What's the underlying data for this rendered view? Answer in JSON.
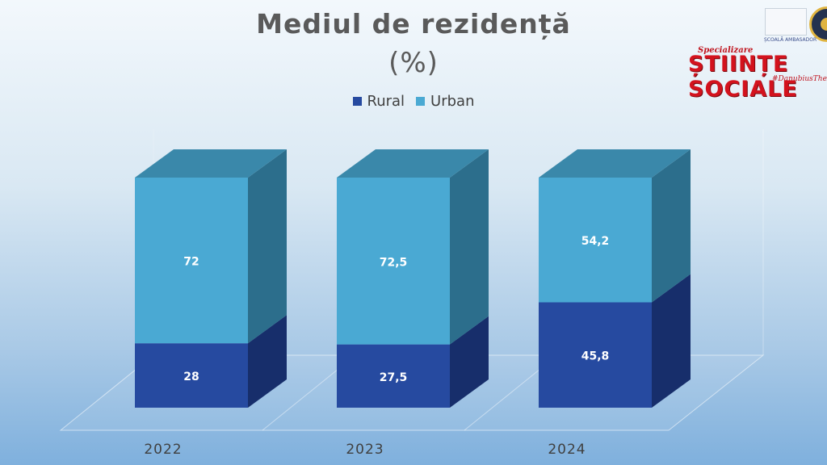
{
  "title": {
    "line1": "Mediul de rezidență",
    "line2": "(%)"
  },
  "logos": {
    "ep_label": "ȘCOALĂ AMBASADOR",
    "spec_small": "Specializare",
    "spec_big": "ȘTIINȚE SOCIALE",
    "hashtag": "#DanubiusTheBest"
  },
  "colors": {
    "rural": "#264aa0",
    "urban": "#4aa9d3"
  },
  "chart_data": {
    "type": "bar",
    "stacked": true,
    "three_d": true,
    "categories": [
      "2022",
      "2023",
      "2024"
    ],
    "series": [
      {
        "name": "Rural",
        "values": [
          28,
          27.5,
          45.8
        ],
        "labels": [
          "28",
          "27,5",
          "45,8"
        ]
      },
      {
        "name": "Urban",
        "values": [
          72,
          72.5,
          54.2
        ],
        "labels": [
          "72",
          "72,5",
          "54,2"
        ]
      }
    ],
    "ylim": [
      0,
      100
    ],
    "legend": "top",
    "grid": false
  }
}
